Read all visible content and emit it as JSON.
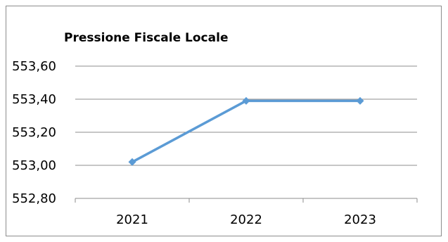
{
  "chart_data": {
    "type": "line",
    "title": "Pressione Fiscale Locale",
    "xlabel": "",
    "ylabel": "",
    "categories": [
      "2021",
      "2022",
      "2023"
    ],
    "series": [
      {
        "values": [
          553.02,
          553.39,
          553.39
        ]
      }
    ],
    "ylim": [
      552.8,
      553.6
    ],
    "y_ticks": [
      553.6,
      553.4,
      553.2,
      553.0,
      552.8
    ],
    "y_tick_labels": [
      "553,60",
      "553,40",
      "553,20",
      "553,00",
      "552,80"
    ],
    "grid": true,
    "legend": "none",
    "colors": {
      "series": "#5b9bd5",
      "grid": "#8c8c8c",
      "axis": "#8c8c8c",
      "border": "#8c8c8c"
    }
  }
}
